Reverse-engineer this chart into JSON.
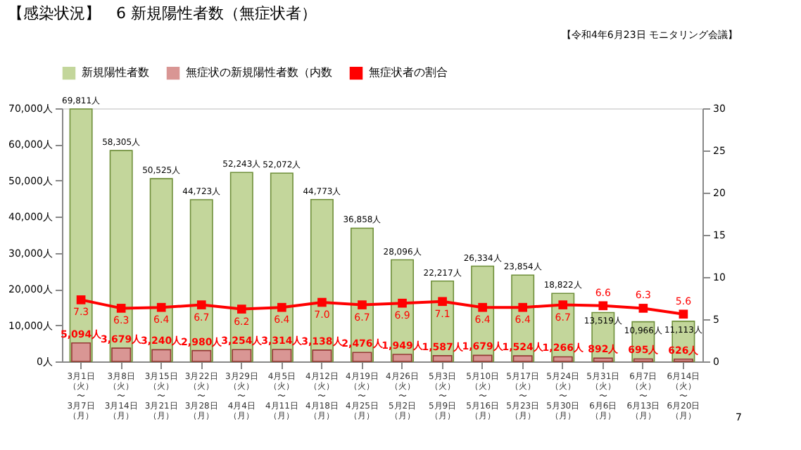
{
  "chart_data": {
    "type": "bar",
    "title": "【感染状況】　6 新規陽性者数（無症状者）",
    "annotations": [
      "【令和4年6月23日 モニタリング会議】",
      "7"
    ],
    "categories": [
      "3月1日（火）〜3月7日（月）",
      "3月8日（火）〜3月14日（月）",
      "3月15日（火）〜3月21日（月）",
      "3月22日（火）〜3月28日（月）",
      "3月29日（火）〜4月4日（月）",
      "4月5日（火）〜4月11日（月）",
      "4月12日（火）〜4月18日（月）",
      "4月19日（火）〜4月25日（月）",
      "4月26日（火）〜5月2日（月）",
      "5月3日（火）〜5月9日（月）",
      "5月10日（火）〜5月16日（月）",
      "5月17日（火）〜5月23日（月）",
      "5月24日（火）〜5月30日（月）",
      "5月31日（火）〜6月6日（月）",
      "6月7日（火）〜6月13日（月）",
      "6月14日（火）〜6月20日（月）"
    ],
    "series": [
      {
        "name": "新規陽性者数",
        "type": "bar",
        "color": "#c3d69b",
        "values": [
          69811,
          58305,
          50525,
          44723,
          52243,
          52072,
          44773,
          36858,
          28096,
          22217,
          26334,
          23854,
          18822,
          13519,
          10966,
          11113
        ],
        "value_labels": [
          "69,811人",
          "58,305人",
          "50,525人",
          "44,723人",
          "52,243人",
          "52,072人",
          "44,773人",
          "36,858人",
          "28,096人",
          "22,217人",
          "26,334人",
          "23,854人",
          "18,822人",
          "13,519人",
          "10,966人",
          "11,113人"
        ]
      },
      {
        "name": "無症状の新規陽性者数（内数",
        "type": "bar",
        "color": "#d99694",
        "values": [
          5094,
          3679,
          3240,
          2980,
          3254,
          3314,
          3138,
          2476,
          1949,
          1587,
          1679,
          1524,
          1266,
          892,
          695,
          626
        ],
        "value_labels": [
          "5,094人",
          "3,679人",
          "3,240人",
          "2,980人",
          "3,254人",
          "3,314人",
          "3,138人",
          "2,476人",
          "1,949人",
          "1,587人",
          "1,679人",
          "1,524人",
          "1,266人",
          "892人",
          "695人",
          "626人"
        ]
      },
      {
        "name": "無症状者の割合",
        "type": "line",
        "axis": "y2",
        "color": "#ff0000",
        "marker": "square",
        "values": [
          7.3,
          6.3,
          6.4,
          6.7,
          6.2,
          6.4,
          7.0,
          6.7,
          6.9,
          7.1,
          6.4,
          6.4,
          6.7,
          6.6,
          6.3,
          5.6
        ],
        "value_labels": [
          "7.3",
          "6.3",
          "6.4",
          "6.7",
          "6.2",
          "6.4",
          "7.0",
          "6.7",
          "6.9",
          "7.1",
          "6.4",
          "6.4",
          "6.7",
          "6.6",
          "6.3",
          "5.6"
        ]
      }
    ],
    "ylim": [
      0,
      70000
    ],
    "yticks": [
      {
        "value": 0,
        "label": "0人"
      },
      {
        "value": 10000,
        "label": "10,000人"
      },
      {
        "value": 20000,
        "label": "20,000人"
      },
      {
        "value": 30000,
        "label": "30,000人"
      },
      {
        "value": 40000,
        "label": "40,000人"
      },
      {
        "value": 50000,
        "label": "50,000人"
      },
      {
        "value": 60000,
        "label": "60,000人"
      },
      {
        "value": 70000,
        "label": "70,000人"
      }
    ],
    "y2lim": [
      0,
      30
    ],
    "y2ticks": [
      0,
      5,
      10,
      15,
      20,
      25,
      30
    ],
    "legend": "top",
    "grid": false
  }
}
